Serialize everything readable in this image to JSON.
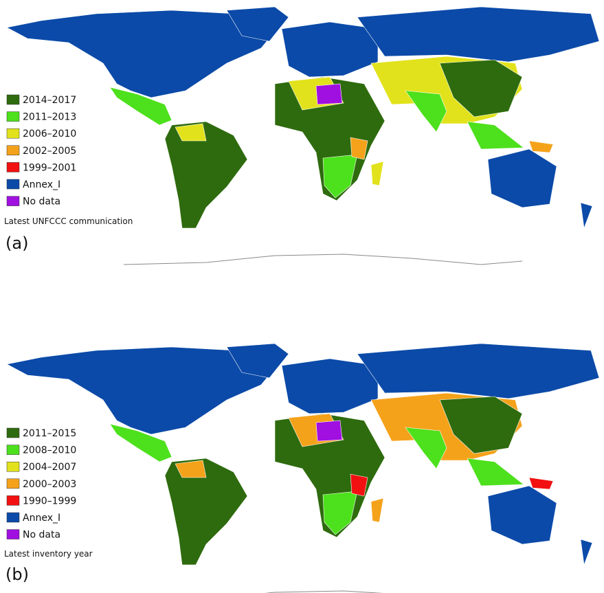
{
  "panels": [
    {
      "tag": "(a)",
      "caption": "Latest UNFCCC communication",
      "legend": [
        {
          "label": "2014–2017",
          "color": "#2e6b0e"
        },
        {
          "label": "2011–2013",
          "color": "#4de01c"
        },
        {
          "label": "2006–2010",
          "color": "#e2e21c"
        },
        {
          "label": "2002–2005",
          "color": "#f5a21b"
        },
        {
          "label": "1999–2001",
          "color": "#f21010"
        },
        {
          "label": "Annex_I",
          "color": "#0b4aa8"
        },
        {
          "label": "No data",
          "color": "#a010e0"
        }
      ]
    },
    {
      "tag": "(b)",
      "caption": "Latest inventory year",
      "legend": [
        {
          "label": "2011–2015",
          "color": "#2e6b0e"
        },
        {
          "label": "2008–2010",
          "color": "#4de01c"
        },
        {
          "label": "2004–2007",
          "color": "#e2e21c"
        },
        {
          "label": "2000–2003",
          "color": "#f5a21b"
        },
        {
          "label": "1990–1999",
          "color": "#f21010"
        },
        {
          "label": "Annex_I",
          "color": "#0b4aa8"
        },
        {
          "label": "No data",
          "color": "#a010e0"
        }
      ]
    }
  ]
}
